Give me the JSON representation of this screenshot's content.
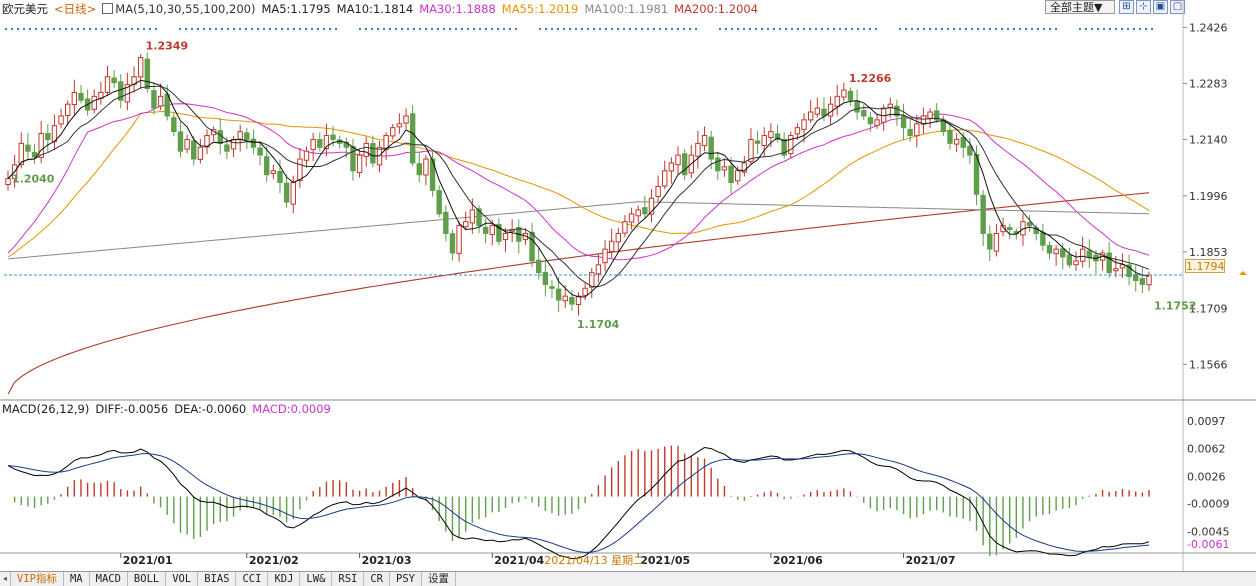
{
  "header": {
    "instrument": "欧元美元",
    "period": "<日线>",
    "ma_title": "MA(5,10,30,55,100,200)",
    "ma_items": [
      {
        "label": "MA5:1.1795",
        "color": "#222222"
      },
      {
        "label": "MA10:1.1814",
        "color": "#222222"
      },
      {
        "label": "MA30:1.1888",
        "color": "#cc33cc"
      },
      {
        "label": "MA55:1.2019",
        "color": "#e69500"
      },
      {
        "label": "MA100:1.1981",
        "color": "#888888"
      },
      {
        "label": "MA200:1.2004",
        "color": "#c0392b"
      }
    ],
    "theme_button": "全部主题▼",
    "tool_icons": [
      "grid-icon",
      "expand-icon",
      "window-icon",
      "maximize-icon"
    ]
  },
  "macd_header": {
    "title": "MACD(26,12,9)",
    "diff": "DIFF:-0.0056",
    "dea": "DEA:-0.0060",
    "macd": "MACD:0.0009"
  },
  "price_tag": "1.1794",
  "cursor_date": "2021/04/13 星期二",
  "tabs": [
    "VIP指标",
    "MA",
    "MACD",
    "BOLL",
    "VOL",
    "BIAS",
    "CCI",
    "KDJ",
    "LW&",
    "RSI",
    "CR",
    "PSY",
    "设置"
  ],
  "colors": {
    "up": "#c0392b",
    "down": "#5f9e4b",
    "ma5": "#111111",
    "ma10": "#333333",
    "ma30": "#cc33cc",
    "ma55": "#e69500",
    "ma100": "#888888",
    "ma200": "#b03a2e",
    "grid_dots": "#1f6fbf",
    "last_price_line": "#3a8fd0"
  },
  "chart_data": [
    {
      "type": "candlestick",
      "title": "欧元美元",
      "y_ticks": [
        "1.2426",
        "1.2283",
        "1.2140",
        "1.1996",
        "1.1853",
        "1.1709",
        "1.1566"
      ],
      "ylim": [
        1.148,
        1.245
      ],
      "x_ticks": [
        "2021/01",
        "2021/02",
        "2021/03",
        "2021/04",
        "2021/05",
        "2021/06",
        "2021/07"
      ],
      "annotations": [
        {
          "label": "1.2349",
          "value": 1.2349,
          "type": "high"
        },
        {
          "label": "1.2040",
          "value": 1.204,
          "type": "start"
        },
        {
          "label": "1.2266",
          "value": 1.2266,
          "type": "high"
        },
        {
          "label": "1.1704",
          "value": 1.1704,
          "type": "low"
        },
        {
          "label": "1.1752",
          "value": 1.1752,
          "type": "low"
        }
      ],
      "last_price": 1.1794,
      "closes": [
        1.204,
        1.2075,
        1.213,
        1.211,
        1.2095,
        1.2155,
        1.214,
        1.2175,
        1.22,
        1.223,
        1.226,
        1.224,
        1.2215,
        1.225,
        1.226,
        1.23,
        1.2285,
        1.224,
        1.228,
        1.23,
        1.2349,
        1.227,
        1.222,
        1.225,
        1.22,
        1.216,
        1.211,
        1.214,
        1.209,
        1.212,
        1.215,
        1.2165,
        1.213,
        1.211,
        1.214,
        1.216,
        1.214,
        1.212,
        1.21,
        1.205,
        1.206,
        1.203,
        1.198,
        1.203,
        1.209,
        1.211,
        1.214,
        1.212,
        1.215,
        1.214,
        1.213,
        1.212,
        1.206,
        1.21,
        1.213,
        1.208,
        1.212,
        1.215,
        1.217,
        1.218,
        1.22,
        1.208,
        1.205,
        1.209,
        1.201,
        1.195,
        1.19,
        1.185,
        1.192,
        1.193,
        1.196,
        1.192,
        1.19,
        1.192,
        1.188,
        1.19,
        1.191,
        1.188,
        1.19,
        1.183,
        1.18,
        1.177,
        1.176,
        1.173,
        1.174,
        1.172,
        1.174,
        1.176,
        1.18,
        1.182,
        1.186,
        1.188,
        1.19,
        1.193,
        1.195,
        1.196,
        1.195,
        1.199,
        1.202,
        1.206,
        1.208,
        1.21,
        1.205,
        1.21,
        1.213,
        1.215,
        1.209,
        1.206,
        1.207,
        1.203,
        1.206,
        1.208,
        1.214,
        1.213,
        1.215,
        1.216,
        1.214,
        1.21,
        1.215,
        1.217,
        1.219,
        1.221,
        1.222,
        1.22,
        1.223,
        1.225,
        1.2266,
        1.224,
        1.221,
        1.22,
        1.218,
        1.219,
        1.222,
        1.223,
        1.22,
        1.217,
        1.215,
        1.218,
        1.22,
        1.221,
        1.219,
        1.216,
        1.213,
        1.214,
        1.212,
        1.21,
        1.2,
        1.19,
        1.186,
        1.19,
        1.192,
        1.191,
        1.19,
        1.193,
        1.192,
        1.19,
        1.187,
        1.185,
        1.186,
        1.184,
        1.182,
        1.183,
        1.186,
        1.184,
        1.183,
        1.185,
        1.18,
        1.181,
        1.182,
        1.179,
        1.178,
        1.177,
        1.1794
      ]
    },
    {
      "type": "macd",
      "title": "MACD(26,12,9)",
      "y_ticks": [
        "0.0097",
        "0.0062",
        "0.0026",
        "-0.0009",
        "-0.0045",
        "-0.0061"
      ],
      "ylim": [
        -0.007,
        0.0105
      ]
    }
  ]
}
